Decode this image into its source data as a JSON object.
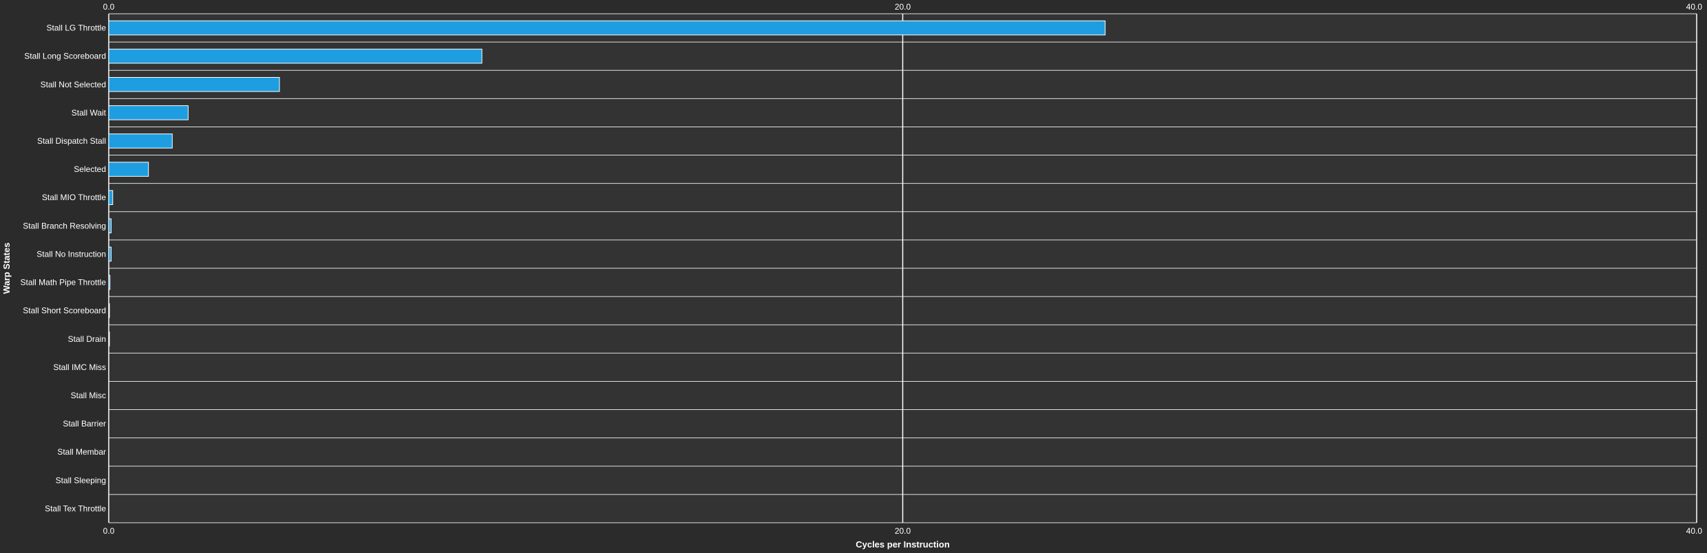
{
  "colors": {
    "background": "#2b2b2b",
    "plot_background": "#333333",
    "bar_fill": "#1e9ee0",
    "bar_stroke": "#ffffff",
    "grid": "#ffffff",
    "text": "#ffffff"
  },
  "chart_data": {
    "type": "bar",
    "orientation": "horizontal",
    "title": "",
    "xlabel": "Cycles per Instruction",
    "ylabel": "Warp States",
    "xlim": [
      0,
      40
    ],
    "xticks": [
      0,
      20,
      40
    ],
    "xtick_labels": [
      "0.0",
      "20.0",
      "40.0"
    ],
    "x_axis_position": "top and bottom",
    "grid": true,
    "categories": [
      "Stall LG Throttle",
      "Stall Long Scoreboard",
      "Stall Not Selected",
      "Stall Wait",
      "Stall Dispatch Stall",
      "Selected",
      "Stall MIO Throttle",
      "Stall Branch Resolving",
      "Stall No Instruction",
      "Stall Math Pipe Throttle",
      "Stall Short Scoreboard",
      "Stall Drain",
      "Stall IMC Miss",
      "Stall Misc",
      "Stall Barrier",
      "Stall Membar",
      "Stall Sleeping",
      "Stall Tex Throttle"
    ],
    "values": [
      25.1,
      9.4,
      4.3,
      2.0,
      1.6,
      1.0,
      0.1,
      0.06,
      0.06,
      0.03,
      0.01,
      0.01,
      0,
      0,
      0,
      0,
      0,
      0
    ]
  }
}
